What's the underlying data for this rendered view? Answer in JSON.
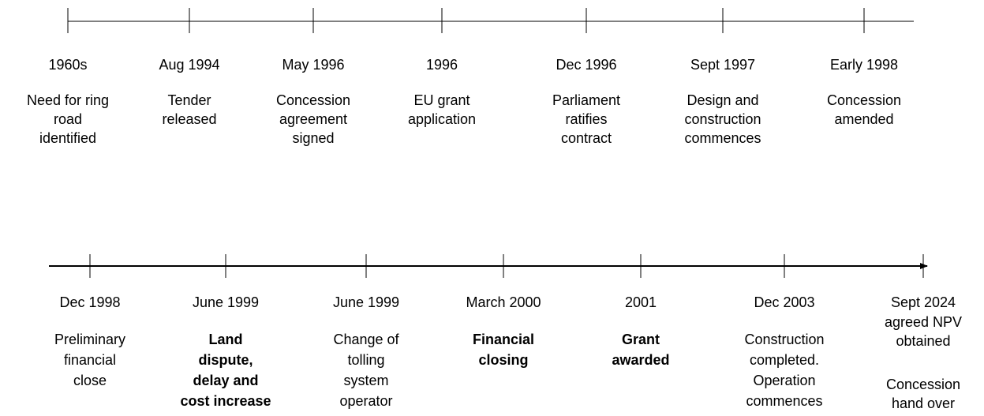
{
  "timelines": [
    {
      "events": [
        {
          "date": "1960s",
          "lines": [
            "Need for ring",
            "road",
            "identified"
          ]
        },
        {
          "date": "Aug 1994",
          "lines": [
            "Tender",
            "released"
          ]
        },
        {
          "date": "May 1996",
          "lines": [
            "Concession",
            "agreement",
            "signed"
          ]
        },
        {
          "date": "1996",
          "lines": [
            "EU grant",
            "application"
          ]
        },
        {
          "date": "Dec 1996",
          "lines": [
            "Parliament",
            "ratifies",
            "contract"
          ]
        },
        {
          "date": "Sept 1997",
          "lines": [
            "Design and",
            "construction",
            "commences"
          ]
        },
        {
          "date": "Early 1998",
          "lines": [
            "Concession",
            "amended"
          ]
        }
      ]
    },
    {
      "events": [
        {
          "date": "Dec 1998",
          "lines": [
            "Preliminary",
            "financial",
            "close"
          ]
        },
        {
          "date": "June 1999",
          "lines": [
            "Land",
            "dispute,",
            "delay and",
            "cost increase"
          ],
          "bold": true
        },
        {
          "date": "June 1999",
          "lines": [
            "Change of",
            "tolling",
            "system",
            "operator"
          ]
        },
        {
          "date": "March 2000",
          "lines": [
            "Financial",
            "closing"
          ],
          "bold": true
        },
        {
          "date": "2001",
          "lines": [
            "Grant",
            "awarded"
          ],
          "bold": true
        },
        {
          "date": "Dec 2003",
          "lines": [
            "Construction",
            "completed.",
            "Operation",
            "commences"
          ]
        },
        {
          "date": "Sept 2024",
          "lines": [
            "agreed NPV",
            "obtained"
          ],
          "lines2": [
            "Concession",
            "hand over"
          ]
        }
      ]
    }
  ]
}
